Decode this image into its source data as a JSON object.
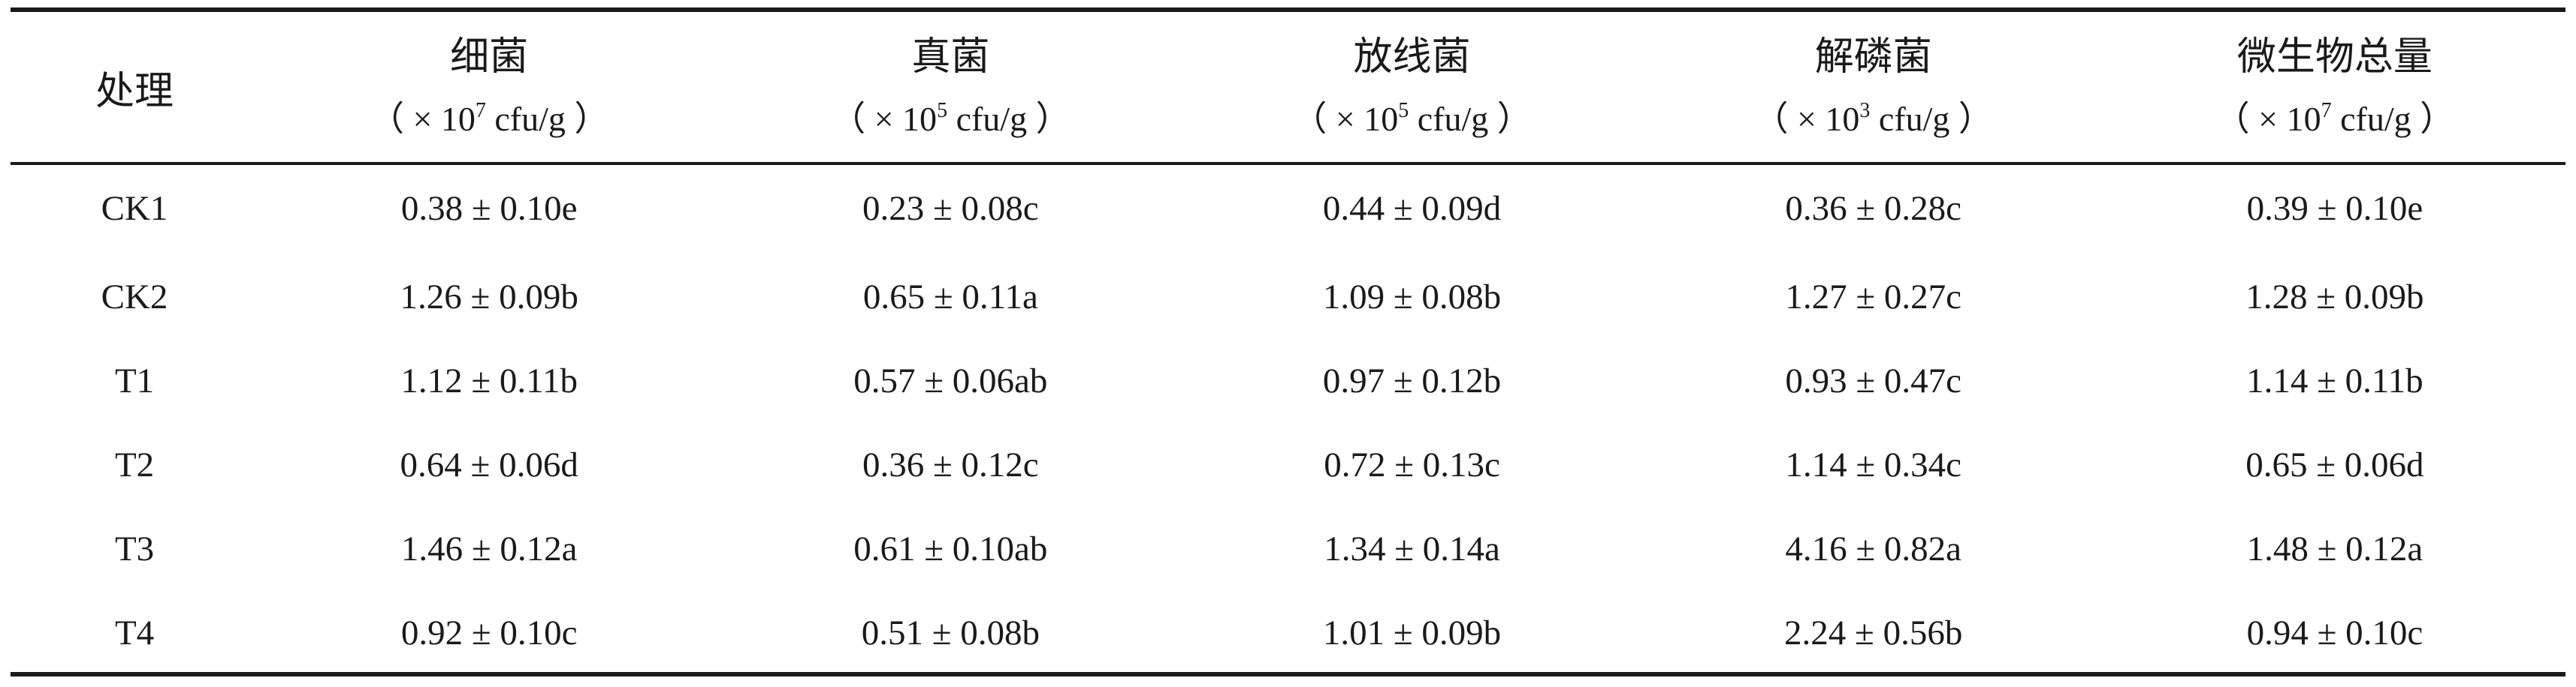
{
  "table": {
    "treatment_header": "处理",
    "columns": [
      {
        "name": "细菌",
        "unit_open": "（ × 10",
        "unit_exp": "7",
        "unit_close": " cfu/g ）"
      },
      {
        "name": "真菌",
        "unit_open": "（ × 10",
        "unit_exp": "5",
        "unit_close": " cfu/g ）"
      },
      {
        "name": "放线菌",
        "unit_open": "（ × 10",
        "unit_exp": "5",
        "unit_close": " cfu/g ）"
      },
      {
        "name": "解磷菌",
        "unit_open": "（ × 10",
        "unit_exp": "3",
        "unit_close": " cfu/g ）"
      },
      {
        "name": "微生物总量",
        "unit_open": "（ × 10",
        "unit_exp": "7",
        "unit_close": " cfu/g ）"
      }
    ],
    "rows": [
      {
        "treatment": "CK1",
        "values": [
          "0.38 ± 0.10e",
          "0.23 ± 0.08c",
          "0.44 ± 0.09d",
          "0.36 ± 0.28c",
          "0.39 ± 0.10e"
        ]
      },
      {
        "treatment": "CK2",
        "values": [
          "1.26 ± 0.09b",
          "0.65 ± 0.11a",
          "1.09 ± 0.08b",
          "1.27 ± 0.27c",
          "1.28 ± 0.09b"
        ]
      },
      {
        "treatment": "T1",
        "values": [
          "1.12 ± 0.11b",
          "0.57 ± 0.06ab",
          "0.97 ± 0.12b",
          "0.93 ± 0.47c",
          "1.14 ± 0.11b"
        ]
      },
      {
        "treatment": "T2",
        "values": [
          "0.64 ± 0.06d",
          "0.36 ± 0.12c",
          "0.72 ± 0.13c",
          "1.14 ± 0.34c",
          "0.65 ± 0.06d"
        ]
      },
      {
        "treatment": "T3",
        "values": [
          "1.46 ± 0.12a",
          "0.61 ± 0.10ab",
          "1.34 ± 0.14a",
          "4.16 ± 0.82a",
          "1.48 ± 0.12a"
        ]
      },
      {
        "treatment": "T4",
        "values": [
          "0.92 ± 0.10c",
          "0.51 ± 0.08b",
          "1.01 ± 0.09b",
          "2.24 ± 0.56b",
          "0.94 ± 0.10c"
        ]
      }
    ]
  }
}
